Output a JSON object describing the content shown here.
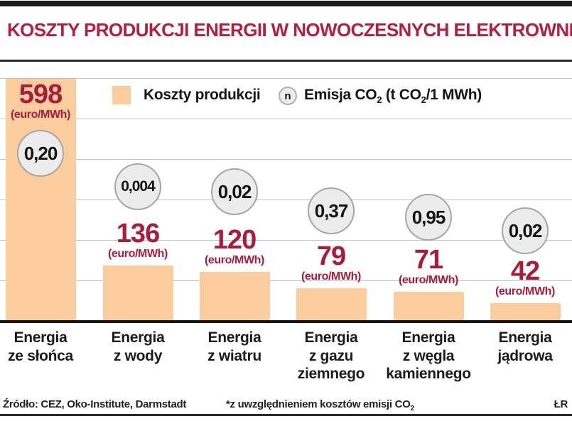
{
  "title": "KOSZTY PRODUKCJI ENERGII W NOWOCZESNYCH ELEKTROWNIACH*",
  "legend": {
    "costs_label": "Koszty produkcji",
    "emission_symbol": "n",
    "emission_label_parts": {
      "p1": "Emisja CO",
      "s1": "2",
      "p2": " (t CO",
      "s2": "2",
      "p3": "/1 MWh)"
    }
  },
  "footer": {
    "source": "Źródło: CEZ, Oko-Institute, Darmstadt",
    "note_parts": {
      "p1": "*z uwzględnieniem kosztów emisji CO",
      "s1": "2"
    },
    "initials": "ŁR"
  },
  "chart_data": {
    "type": "bar",
    "title": "KOSZTY PRODUKCJI ENERGII W NOWOCZESNYCH ELEKTROWNIACH*",
    "xlabel": "",
    "ylabel": "",
    "unit_label": "(euro/MWh)",
    "ylim": [
      0,
      600
    ],
    "grid": "horizontal gridlines every 100 euro/MWh, baseline at 0",
    "legend_position": "top",
    "categories": [
      "Energia\nze słońca",
      "Energia\nz wody",
      "Energia\nz wiatru",
      "Energia\nz gazu\nziemnego",
      "Energia\nz węgla\nkamiennego",
      "Energia\njądrowa"
    ],
    "series": [
      {
        "name": "Koszty produkcji",
        "unit": "euro/MWh",
        "values": [
          598,
          136,
          120,
          79,
          71,
          42
        ],
        "display": [
          "598",
          "136",
          "120",
          "79",
          "71",
          "42"
        ]
      },
      {
        "name": "Emisja CO2",
        "unit": "t CO2/1 MWh",
        "values": [
          0.2,
          0.004,
          0.02,
          0.37,
          0.95,
          0.02
        ],
        "display": [
          "0,20",
          "0,004",
          "0,02",
          "0,37",
          "0,95",
          "0,02"
        ]
      }
    ]
  },
  "colors": {
    "title_red": "#b51e3e",
    "value_red": "#a81c3c",
    "bar_fill": "#fbcc9e",
    "circle_fill": "#ececec",
    "circle_border": "#a6a6a6",
    "gridline": "#c3c3c3",
    "rule_dark": "#1c1c1e"
  }
}
